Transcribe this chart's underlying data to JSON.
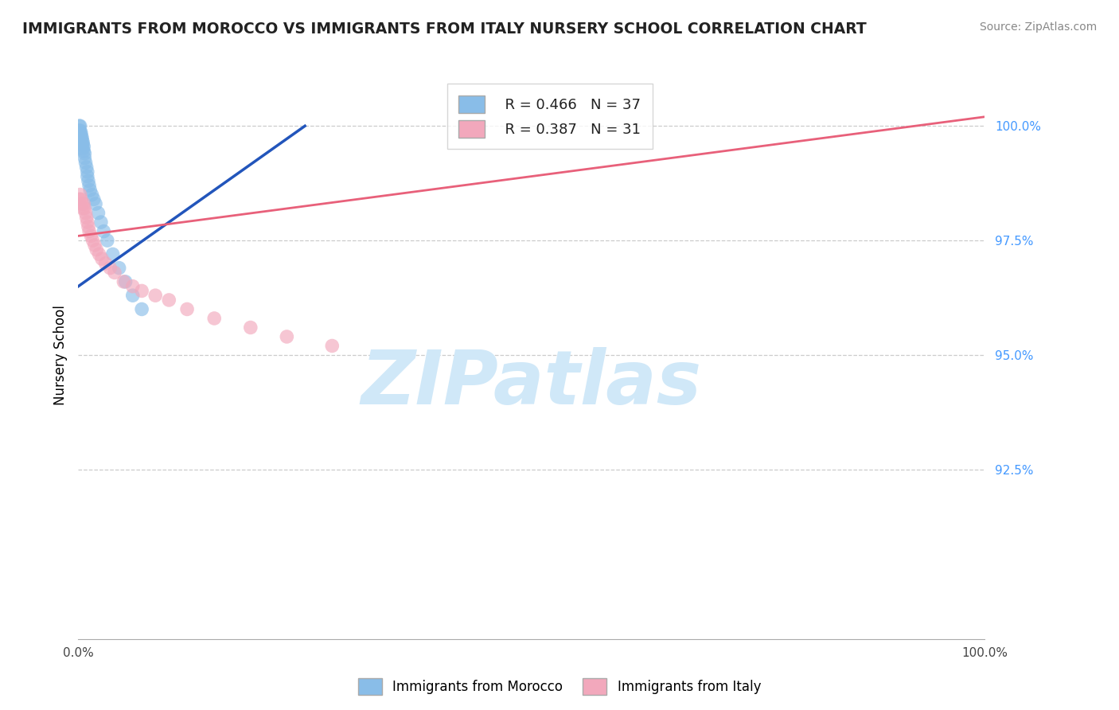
{
  "title": "IMMIGRANTS FROM MOROCCO VS IMMIGRANTS FROM ITALY NURSERY SCHOOL CORRELATION CHART",
  "source": "Source: ZipAtlas.com",
  "ylabel": "Nursery School",
  "ytick_values": [
    0.925,
    0.95,
    0.975,
    1.0
  ],
  "xlim": [
    0.0,
    1.0
  ],
  "ylim": [
    0.888,
    1.012
  ],
  "legend_r1": "R = 0.466",
  "legend_n1": "N = 37",
  "legend_r2": "R = 0.387",
  "legend_n2": "N = 31",
  "morocco_color": "#89bde8",
  "italy_color": "#f2a8bc",
  "morocco_line_color": "#2255bb",
  "italy_line_color": "#e8607a",
  "background_color": "#ffffff",
  "grid_color": "#cccccc",
  "morocco_x": [
    0.001,
    0.001,
    0.002,
    0.002,
    0.002,
    0.003,
    0.003,
    0.003,
    0.004,
    0.004,
    0.004,
    0.005,
    0.005,
    0.005,
    0.006,
    0.006,
    0.007,
    0.007,
    0.008,
    0.009,
    0.01,
    0.01,
    0.011,
    0.012,
    0.013,
    0.015,
    0.017,
    0.019,
    0.022,
    0.025,
    0.028,
    0.032,
    0.038,
    0.045,
    0.052,
    0.06,
    0.07
  ],
  "morocco_y": [
    1.0,
    0.999,
    1.0,
    0.999,
    0.998,
    0.9985,
    0.998,
    0.997,
    0.9975,
    0.997,
    0.996,
    0.9965,
    0.996,
    0.995,
    0.9955,
    0.9945,
    0.994,
    0.993,
    0.992,
    0.991,
    0.99,
    0.989,
    0.988,
    0.987,
    0.986,
    0.985,
    0.984,
    0.983,
    0.981,
    0.979,
    0.977,
    0.975,
    0.972,
    0.969,
    0.966,
    0.963,
    0.96
  ],
  "italy_x": [
    0.001,
    0.002,
    0.003,
    0.004,
    0.005,
    0.006,
    0.007,
    0.008,
    0.009,
    0.01,
    0.011,
    0.012,
    0.014,
    0.016,
    0.018,
    0.02,
    0.023,
    0.026,
    0.03,
    0.035,
    0.04,
    0.05,
    0.06,
    0.07,
    0.085,
    0.1,
    0.12,
    0.15,
    0.19,
    0.23,
    0.28
  ],
  "italy_y": [
    0.984,
    0.985,
    0.984,
    0.983,
    0.982,
    0.983,
    0.982,
    0.981,
    0.98,
    0.979,
    0.978,
    0.977,
    0.976,
    0.975,
    0.974,
    0.973,
    0.972,
    0.971,
    0.97,
    0.969,
    0.968,
    0.966,
    0.965,
    0.964,
    0.963,
    0.962,
    0.96,
    0.958,
    0.956,
    0.954,
    0.952
  ],
  "morocco_trendline_x": [
    0.0,
    0.25
  ],
  "morocco_trendline_y": [
    0.965,
    1.0
  ],
  "italy_trendline_x": [
    0.0,
    1.0
  ],
  "italy_trendline_y": [
    0.976,
    1.002
  ],
  "watermark_text": "ZIPatlas",
  "watermark_color": "#d0e8f8"
}
